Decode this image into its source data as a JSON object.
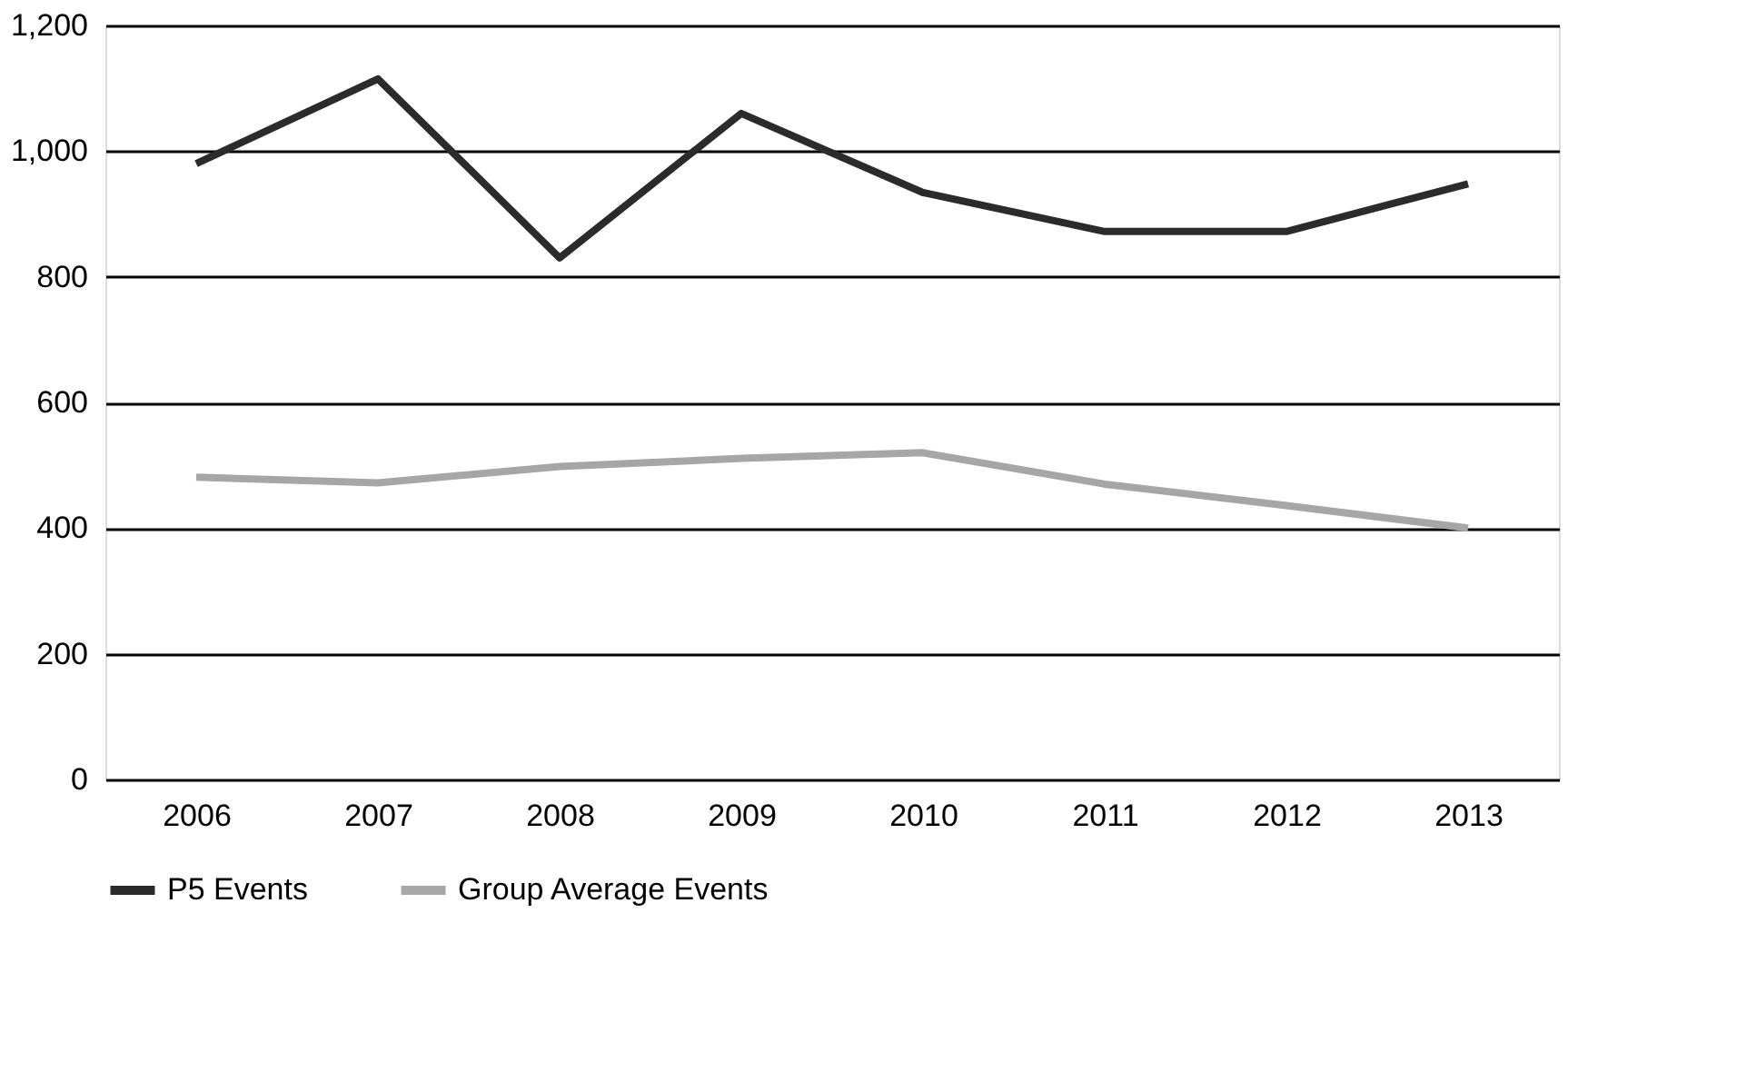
{
  "chart_data": {
    "type": "line",
    "categories": [
      "2006",
      "2007",
      "2008",
      "2009",
      "2010",
      "2011",
      "2012",
      "2013"
    ],
    "series": [
      {
        "name": "P5 Events",
        "color": "#2b2b2b",
        "values": [
          980,
          1115,
          830,
          1060,
          934,
          872,
          872,
          948
        ]
      },
      {
        "name": "Group Average Events",
        "color": "#a6a6a6",
        "values": [
          481,
          472,
          498,
          511,
          520,
          470,
          436,
          400
        ]
      }
    ],
    "ylim": [
      0,
      1200
    ],
    "yticks": [
      0,
      {
        "value": 200,
        "label": "200"
      },
      {
        "value": 400,
        "label": "400"
      },
      {
        "value": 600,
        "label": "600"
      },
      {
        "value": 800,
        "label": "800"
      },
      {
        "value": 1000,
        "label": "1,000"
      },
      {
        "value": 1200,
        "label": "1,200"
      }
    ],
    "grid": "y",
    "legend": "bottom",
    "marker": "none",
    "line_style": "solid"
  }
}
